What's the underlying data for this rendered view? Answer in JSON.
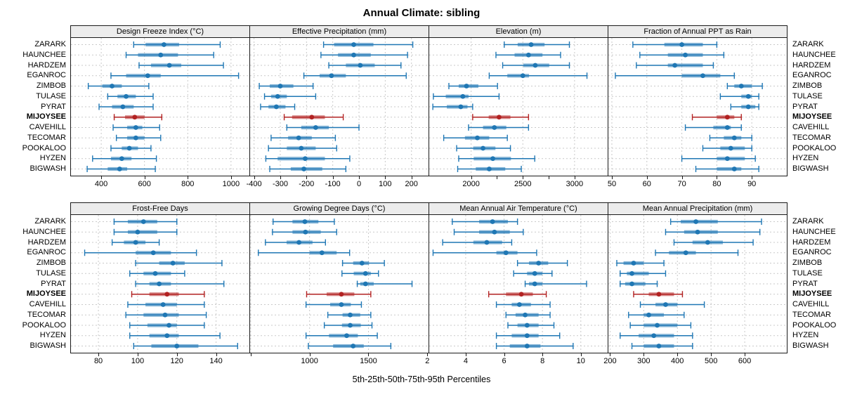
{
  "title": "Annual Climate: sibling",
  "caption": "5th-25th-50th-75th-95th Percentiles",
  "sites": [
    "ZARARK",
    "HAUNCHEE",
    "HARDZEM",
    "EGANROC",
    "ZIMBOB",
    "TULASE",
    "PYRAT",
    "MIJOYSEE",
    "CAVEHILL",
    "TECOMAR",
    "POOKALOO",
    "HYZEN",
    "BIGWASH"
  ],
  "highlight_site": "MIJOYSEE",
  "colors": {
    "series_blue": "#1f77b4",
    "highlight_red": "#b22222",
    "grid": "#c9c9c9",
    "strip_bg": "#ececec",
    "panel_border": "#1a1a1a"
  },
  "percentiles": [
    5,
    25,
    50,
    75,
    95
  ],
  "chart_data": [
    {
      "type": "percentile-dot",
      "band": 0,
      "panel_title": "Design Freeze Index (°C)",
      "xlim": [
        260,
        1085
      ],
      "ticks": [
        400,
        600,
        800,
        1000
      ],
      "tick_labels": [
        "400",
        "600",
        "800",
        "1000"
      ],
      "minor_ticks": [],
      "values": {
        "ZARARK": [
          550,
          605,
          690,
          760,
          950
        ],
        "HAUNCHEE": [
          515,
          570,
          675,
          755,
          920
        ],
        "HARDZEM": [
          575,
          630,
          715,
          770,
          965
        ],
        "EGANROC": [
          445,
          515,
          615,
          675,
          1035
        ],
        "ZIMBOB": [
          340,
          405,
          450,
          495,
          620
        ],
        "TULASE": [
          430,
          475,
          515,
          560,
          640
        ],
        "PYRAT": [
          390,
          450,
          500,
          550,
          640
        ],
        "MIJOYSEE": [
          460,
          510,
          555,
          600,
          680
        ],
        "CAVEHILL": [
          455,
          520,
          560,
          590,
          670
        ],
        "TECOMAR": [
          470,
          520,
          560,
          600,
          675
        ],
        "POOKALOO": [
          445,
          495,
          530,
          570,
          630
        ],
        "HYZEN": [
          360,
          445,
          495,
          540,
          655
        ],
        "BIGWASH": [
          335,
          430,
          485,
          520,
          650
        ]
      }
    },
    {
      "type": "percentile-dot",
      "band": 0,
      "panel_title": "Effective Precipitation (mm)",
      "xlim": [
        -415,
        265
      ],
      "ticks": [
        -400,
        -300,
        -200,
        -100,
        0,
        100,
        200
      ],
      "tick_labels": [
        "-400",
        "-300",
        "-200",
        "-100",
        "0",
        "100",
        "200"
      ],
      "minor_ticks": [],
      "values": {
        "ZARARK": [
          -135,
          -95,
          -20,
          55,
          205
        ],
        "HAUNCHEE": [
          -145,
          -80,
          -20,
          45,
          185
        ],
        "HARDZEM": [
          -115,
          -50,
          5,
          60,
          160
        ],
        "EGANROC": [
          -210,
          -150,
          -105,
          -50,
          180
        ],
        "ZIMBOB": [
          -380,
          -340,
          -300,
          -250,
          -175
        ],
        "TULASE": [
          -360,
          -335,
          -310,
          -275,
          -165
        ],
        "PYRAT": [
          -375,
          -345,
          -315,
          -280,
          -245
        ],
        "MIJOYSEE": [
          -285,
          -255,
          -180,
          -130,
          -60
        ],
        "CAVEHILL": [
          -275,
          -220,
          -165,
          -115,
          0
        ],
        "TECOMAR": [
          -335,
          -270,
          -230,
          -180,
          -90
        ],
        "POOKALOO": [
          -345,
          -275,
          -220,
          -165,
          -85
        ],
        "HYZEN": [
          -355,
          -310,
          -205,
          -130,
          -35
        ],
        "BIGWASH": [
          -340,
          -260,
          -210,
          -140,
          -50
        ]
      }
    },
    {
      "type": "percentile-dot",
      "band": 0,
      "panel_title": "Elevation (m)",
      "xlim": [
        1595,
        3320
      ],
      "ticks": [
        2000,
        2500,
        3000
      ],
      "tick_labels": [
        "2000",
        "2500",
        "3000"
      ],
      "minor_ticks": [
        2250,
        2750
      ],
      "values": {
        "ZARARK": [
          2320,
          2450,
          2580,
          2710,
          2950
        ],
        "HAUNCHEE": [
          2240,
          2420,
          2555,
          2690,
          2865
        ],
        "HARDZEM": [
          2305,
          2505,
          2620,
          2755,
          2950
        ],
        "EGANROC": [
          2175,
          2350,
          2500,
          2560,
          3120
        ],
        "ZIMBOB": [
          1785,
          1880,
          1955,
          2070,
          2255
        ],
        "TULASE": [
          1635,
          1755,
          1920,
          1975,
          2270
        ],
        "PYRAT": [
          1630,
          1765,
          1900,
          1965,
          2015
        ],
        "MIJOYSEE": [
          2015,
          2170,
          2270,
          2380,
          2555
        ],
        "CAVEHILL": [
          1975,
          2115,
          2225,
          2340,
          2555
        ],
        "TECOMAR": [
          1735,
          1940,
          2060,
          2175,
          2350
        ],
        "POOKALOO": [
          1860,
          2020,
          2115,
          2235,
          2380
        ],
        "HYZEN": [
          1880,
          2025,
          2210,
          2385,
          2615
        ],
        "BIGWASH": [
          1870,
          2045,
          2175,
          2330,
          2485
        ]
      }
    },
    {
      "type": "percentile-dot",
      "band": 0,
      "panel_title": "Fraction of Annual PPT as Rain",
      "xlim": [
        49,
        100
      ],
      "ticks": [
        50,
        60,
        70,
        80,
        90
      ],
      "tick_labels": [
        "50",
        "60",
        "70",
        "80",
        "90"
      ],
      "minor_ticks": [],
      "values": {
        "ZARARK": [
          56,
          65,
          70,
          76,
          80
        ],
        "HAUNCHEE": [
          58,
          66,
          71,
          76,
          82
        ],
        "HARDZEM": [
          57,
          66,
          68,
          76,
          79
        ],
        "EGANROC": [
          51,
          70,
          76,
          81,
          85
        ],
        "ZIMBOB": [
          83,
          85,
          87,
          90,
          93
        ],
        "TULASE": [
          81,
          87,
          89,
          90,
          92
        ],
        "PYRAT": [
          84,
          87,
          89,
          91,
          92
        ],
        "MIJOYSEE": [
          73,
          80,
          83,
          85,
          87
        ],
        "CAVEHILL": [
          71,
          79,
          83,
          84,
          87
        ],
        "TECOMAR": [
          78,
          82,
          85,
          87,
          90
        ],
        "POOKALOO": [
          76,
          81,
          84,
          88,
          90
        ],
        "HYZEN": [
          70,
          80,
          83,
          88,
          91
        ],
        "BIGWASH": [
          74,
          80,
          85,
          87,
          92
        ]
      }
    },
    {
      "type": "percentile-dot",
      "band": 1,
      "panel_title": "Frost-Free Days",
      "xlim": [
        66,
        157
      ],
      "ticks": [
        80,
        100,
        120,
        140
      ],
      "tick_labels": [
        "80",
        "100",
        "120",
        "140"
      ],
      "minor_ticks": [],
      "values": {
        "ZARARK": [
          88,
          95,
          103,
          110,
          120
        ],
        "HAUNCHEE": [
          88,
          95,
          100,
          110,
          120
        ],
        "HARDZEM": [
          87,
          93,
          99,
          104,
          111
        ],
        "EGANROC": [
          73,
          99,
          108,
          117,
          130
        ],
        "ZIMBOB": [
          99,
          111,
          118,
          124,
          143
        ],
        "TULASE": [
          96,
          103,
          109,
          117,
          124
        ],
        "PYRAT": [
          99,
          106,
          111,
          117,
          144
        ],
        "MIJOYSEE": [
          97,
          106,
          115,
          121,
          134
        ],
        "CAVEHILL": [
          95,
          104,
          113,
          120,
          134
        ],
        "TECOMAR": [
          94,
          103,
          114,
          121,
          135
        ],
        "POOKALOO": [
          96,
          105,
          116,
          120,
          134
        ],
        "HYZEN": [
          96,
          106,
          115,
          121,
          142
        ],
        "BIGWASH": [
          98,
          107,
          120,
          131,
          151
        ]
      }
    },
    {
      "type": "percentile-dot",
      "band": 1,
      "panel_title": "Growing Degree Days (°C)",
      "xlim": [
        495,
        2010
      ],
      "ticks": [
        500,
        1000,
        1500
      ],
      "tick_labels": [
        "",
        "1000",
        "1500"
      ],
      "minor_ticks": [],
      "values": {
        "ZARARK": [
          690,
          855,
          960,
          1075,
          1210
        ],
        "HAUNCHEE": [
          685,
          855,
          965,
          1095,
          1230
        ],
        "HARDZEM": [
          625,
          805,
          910,
          1025,
          1135
        ],
        "EGANROC": [
          565,
          1000,
          1105,
          1230,
          1340
        ],
        "ZIMBOB": [
          1280,
          1370,
          1445,
          1505,
          1635
        ],
        "TULASE": [
          1275,
          1375,
          1475,
          1520,
          1585
        ],
        "PYRAT": [
          1405,
          1430,
          1475,
          1545,
          1870
        ],
        "MIJOYSEE": [
          975,
          1145,
          1270,
          1380,
          1520
        ],
        "CAVEHILL": [
          970,
          1175,
          1270,
          1350,
          1440
        ],
        "TECOMAR": [
          1155,
          1280,
          1345,
          1430,
          1520
        ],
        "POOKALOO": [
          1125,
          1275,
          1345,
          1435,
          1530
        ],
        "HYZEN": [
          970,
          1165,
          1315,
          1410,
          1575
        ],
        "BIGWASH": [
          990,
          1200,
          1370,
          1460,
          1690
        ]
      }
    },
    {
      "type": "percentile-dot",
      "band": 1,
      "panel_title": "Mean Annual Air Temperature (°C)",
      "xlim": [
        2.1,
        11.4
      ],
      "ticks": [
        2,
        4,
        6,
        8,
        10
      ],
      "tick_labels": [
        "2",
        "4",
        "6",
        "8",
        "10"
      ],
      "minor_ticks": [],
      "values": {
        "ZARARK": [
          3.3,
          4.7,
          5.4,
          6.2,
          6.7
        ],
        "HAUNCHEE": [
          3.4,
          4.7,
          5.5,
          6.3,
          7.0
        ],
        "HARDZEM": [
          2.8,
          4.4,
          5.1,
          5.9,
          6.4
        ],
        "EGANROC": [
          2.3,
          5.6,
          6.1,
          6.7,
          7.7
        ],
        "ZIMBOB": [
          6.7,
          7.3,
          7.8,
          8.3,
          9.3
        ],
        "TULASE": [
          6.5,
          7.2,
          7.6,
          8.0,
          8.5
        ],
        "PYRAT": [
          7.1,
          7.3,
          7.6,
          8.0,
          10.3
        ],
        "MIJOYSEE": [
          5.2,
          6.1,
          6.9,
          7.5,
          8.2
        ],
        "CAVEHILL": [
          5.6,
          6.4,
          6.8,
          7.4,
          8.4
        ],
        "TECOMAR": [
          6.1,
          6.6,
          7.1,
          7.8,
          8.4
        ],
        "POOKALOO": [
          6.2,
          6.7,
          7.2,
          7.8,
          8.6
        ],
        "HYZEN": [
          5.6,
          6.4,
          7.2,
          7.8,
          8.9
        ],
        "BIGWASH": [
          5.6,
          6.3,
          7.2,
          7.9,
          9.6
        ]
      }
    },
    {
      "type": "percentile-dot",
      "band": 1,
      "panel_title": "Mean Annual Precipitation (mm)",
      "xlim": [
        195,
        725
      ],
      "ticks": [
        200,
        300,
        400,
        500,
        600
      ],
      "tick_labels": [
        "200",
        "300",
        "400",
        "500",
        "600"
      ],
      "minor_ticks": [],
      "values": {
        "ZARARK": [
          380,
          410,
          455,
          520,
          650
        ],
        "HAUNCHEE": [
          365,
          420,
          460,
          520,
          645
        ],
        "HARDZEM": [
          390,
          445,
          490,
          535,
          625
        ],
        "EGANROC": [
          335,
          375,
          425,
          455,
          580
        ],
        "ZIMBOB": [
          220,
          240,
          270,
          300,
          360
        ],
        "TULASE": [
          230,
          250,
          265,
          315,
          365
        ],
        "PYRAT": [
          230,
          245,
          265,
          305,
          340
        ],
        "MIJOYSEE": [
          270,
          315,
          345,
          390,
          415
        ],
        "CAVEHILL": [
          290,
          335,
          365,
          400,
          480
        ],
        "TECOMAR": [
          255,
          300,
          315,
          360,
          420
        ],
        "POOKALOO": [
          260,
          300,
          340,
          400,
          440
        ],
        "HYZEN": [
          230,
          285,
          330,
          390,
          445
        ],
        "BIGWASH": [
          265,
          300,
          345,
          390,
          445
        ]
      }
    }
  ]
}
